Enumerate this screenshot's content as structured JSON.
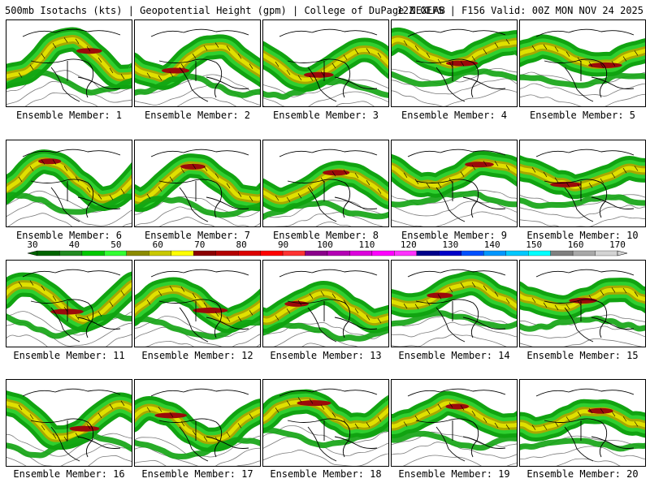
{
  "header": {
    "left": "500mb Isotachs (kts) | Geopotential Height (gpm) | College of DuPage NEXLAB",
    "right": "12Z GEFS | F156 Valid: 00Z MON NOV 24 2025"
  },
  "members": [
    {
      "label": "Ensemble Member: 1"
    },
    {
      "label": "Ensemble Member: 2"
    },
    {
      "label": "Ensemble Member: 3"
    },
    {
      "label": "Ensemble Member: 4"
    },
    {
      "label": "Ensemble Member: 5"
    },
    {
      "label": "Ensemble Member: 6"
    },
    {
      "label": "Ensemble Member: 7"
    },
    {
      "label": "Ensemble Member: 8"
    },
    {
      "label": "Ensemble Member: 9"
    },
    {
      "label": "Ensemble Member: 10"
    },
    {
      "label": "Ensemble Member: 11"
    },
    {
      "label": "Ensemble Member: 12"
    },
    {
      "label": "Ensemble Member: 13"
    },
    {
      "label": "Ensemble Member: 14"
    },
    {
      "label": "Ensemble Member: 15"
    },
    {
      "label": "Ensemble Member: 16"
    },
    {
      "label": "Ensemble Member: 17"
    },
    {
      "label": "Ensemble Member: 18"
    },
    {
      "label": "Ensemble Member: 19"
    },
    {
      "label": "Ensemble Member: 20"
    }
  ],
  "colorbar": {
    "tick_labels": [
      "30",
      "40",
      "50",
      "60",
      "70",
      "80",
      "90",
      "100",
      "110",
      "120",
      "130",
      "140",
      "150",
      "160",
      "170"
    ],
    "colors": [
      "#006400",
      "#228b22",
      "#00c800",
      "#32ff32",
      "#8b8b00",
      "#c8c800",
      "#ffff00",
      "#8b0000",
      "#b40000",
      "#dc0000",
      "#ff0000",
      "#ff3232",
      "#8b008b",
      "#b400b4",
      "#dc00dc",
      "#ff00ff",
      "#ff32ff",
      "#00008b",
      "#0000c8",
      "#0050ff",
      "#0096ff",
      "#00c8ff",
      "#00ffff",
      "#808080",
      "#a9a9a9",
      "#d3d3d3"
    ]
  },
  "map_colors": {
    "jet_outer": "#11a311",
    "jet_mid": "#2fcf2f",
    "jet_core1": "#a8a800",
    "jet_core2": "#e0e000",
    "jet_max": "#9b0a0a",
    "coast": "#000000",
    "height_contour": "#7a7a7a"
  }
}
